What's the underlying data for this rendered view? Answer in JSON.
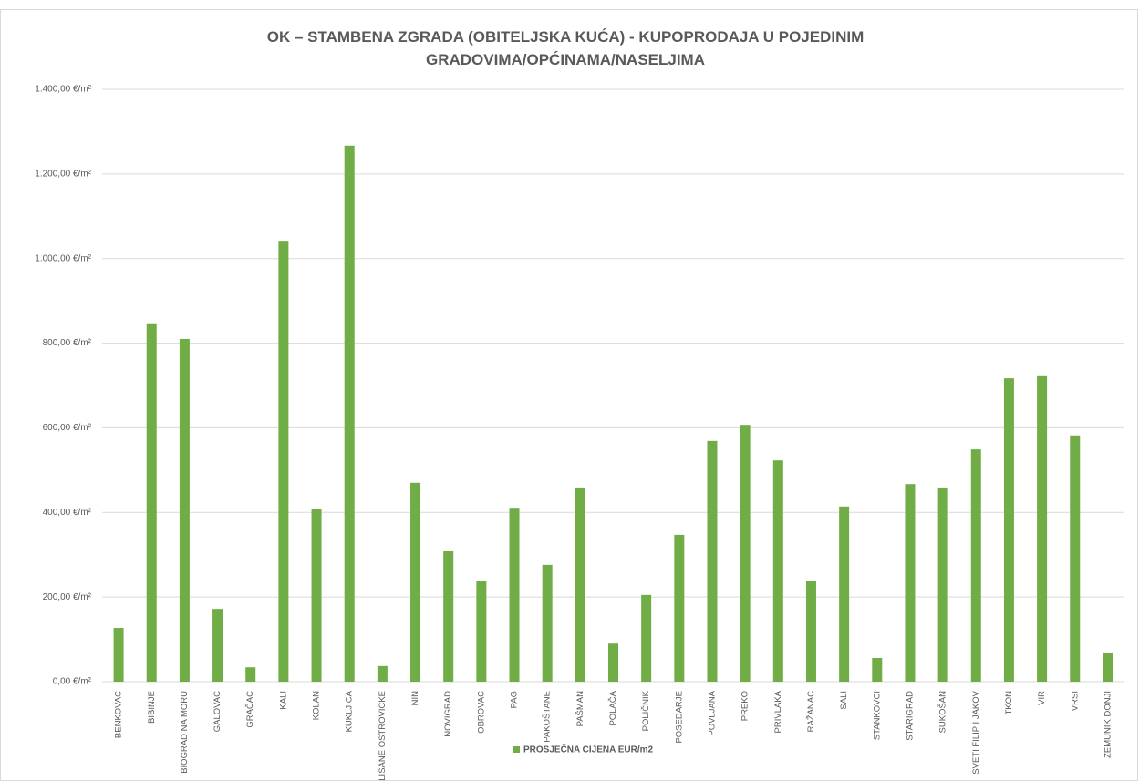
{
  "chart_data": {
    "type": "bar",
    "title": "OK – STAMBENA ZGRADA (OBITELJSKA KUĆA) - KUPOPRODAJA U POJEDINIM GRADOVIMA/OPĆINAMA/NASELJIMA",
    "categories": [
      "BENKOVAC",
      "BIBINJE",
      "BIOGRAD NA MORU",
      "GALOVAC",
      "GRAČAC",
      "KALI",
      "KOLAN",
      "KUKLJICA",
      "LIŠANE OSTROVIČKE",
      "NIN",
      "NOVIGRAD",
      "OBROVAC",
      "PAG",
      "PAKOŠTANE",
      "PAŠMAN",
      "POLAČA",
      "POLIČNIK",
      "POSEDARJE",
      "POVLJANA",
      "PREKO",
      "PRIVLAKA",
      "RAŽANAC",
      "SALI",
      "STANKOVCI",
      "STARIGRAD",
      "SUKOŠAN",
      "SVETI FILIP I JAKOV",
      "TKON",
      "VIR",
      "VRSI",
      "ZEMUNIK DONJI"
    ],
    "series": [
      {
        "name": "PROSJEČNA CIJENA EUR/m2",
        "color": "#70ad47",
        "values": [
          127,
          847,
          810,
          172,
          34,
          1040,
          409,
          1267,
          37,
          470,
          308,
          239,
          411,
          276,
          459,
          90,
          205,
          347,
          569,
          607,
          523,
          237,
          414,
          56,
          467,
          459,
          549,
          717,
          722,
          582,
          69
        ]
      }
    ],
    "ylim": [
      0,
      1400
    ],
    "yticks": [
      {
        "value": 0,
        "label": "0,00 €/m²"
      },
      {
        "value": 200,
        "label": "200,00 €/m²"
      },
      {
        "value": 400,
        "label": "400,00 €/m²"
      },
      {
        "value": 600,
        "label": "600,00 €/m²"
      },
      {
        "value": 800,
        "label": "800,00 €/m²"
      },
      {
        "value": 1000,
        "label": "1.000,00 €/m²"
      },
      {
        "value": 1200,
        "label": "1.200,00 €/m²"
      },
      {
        "value": 1400,
        "label": "1.400,00 €/m²"
      }
    ],
    "grid": true,
    "legend": "bottom"
  }
}
